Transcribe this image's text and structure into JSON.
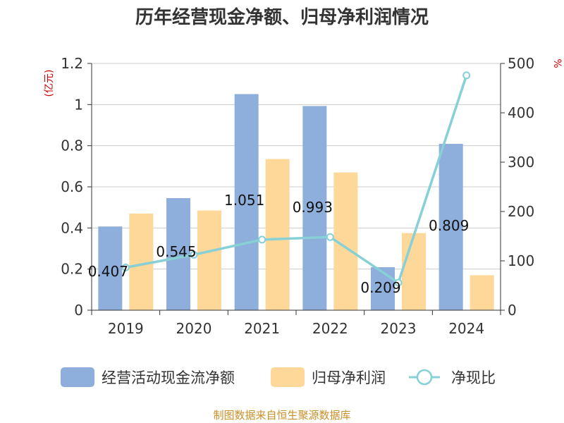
{
  "chart_data": {
    "type": "bar",
    "title": "历年经营现金净额、归母净利润情况",
    "categories": [
      "2019",
      "2020",
      "2021",
      "2022",
      "2023",
      "2024"
    ],
    "series": [
      {
        "name": "经营活动现金流净额",
        "kind": "bar",
        "axis": "left",
        "color": "#8eaedb",
        "values": [
          0.407,
          0.545,
          1.051,
          0.993,
          0.209,
          0.809
        ]
      },
      {
        "name": "归母净利润",
        "kind": "bar",
        "axis": "left",
        "color": "#fdd899",
        "values": [
          0.47,
          0.485,
          0.735,
          0.67,
          0.375,
          0.17
        ]
      },
      {
        "name": "净现比",
        "kind": "line",
        "axis": "right",
        "color": "#86d0d6",
        "values": [
          86.6,
          112.4,
          143.0,
          148.2,
          55.7,
          475.9
        ]
      }
    ],
    "data_labels": [
      "0.407",
      "0.545",
      "1.051",
      "0.993",
      "0.209",
      "0.809"
    ],
    "y_left": {
      "unit": "(亿元)",
      "min": 0,
      "max": 1.2,
      "ticks": [
        0,
        0.2,
        0.4,
        0.6,
        0.8,
        1,
        1.2
      ],
      "tick_labels": [
        "0",
        "0.2",
        "0.4",
        "0.6",
        "0.8",
        "1",
        "1.2"
      ]
    },
    "y_right": {
      "unit": "%",
      "min": 0,
      "max": 500,
      "ticks": [
        0,
        100,
        200,
        300,
        400,
        500
      ],
      "tick_labels": [
        "0",
        "100",
        "200",
        "300",
        "400",
        "500"
      ]
    },
    "grid": true,
    "legend_position": "bottom",
    "source": "制图数据来自恒生聚源数据库"
  }
}
